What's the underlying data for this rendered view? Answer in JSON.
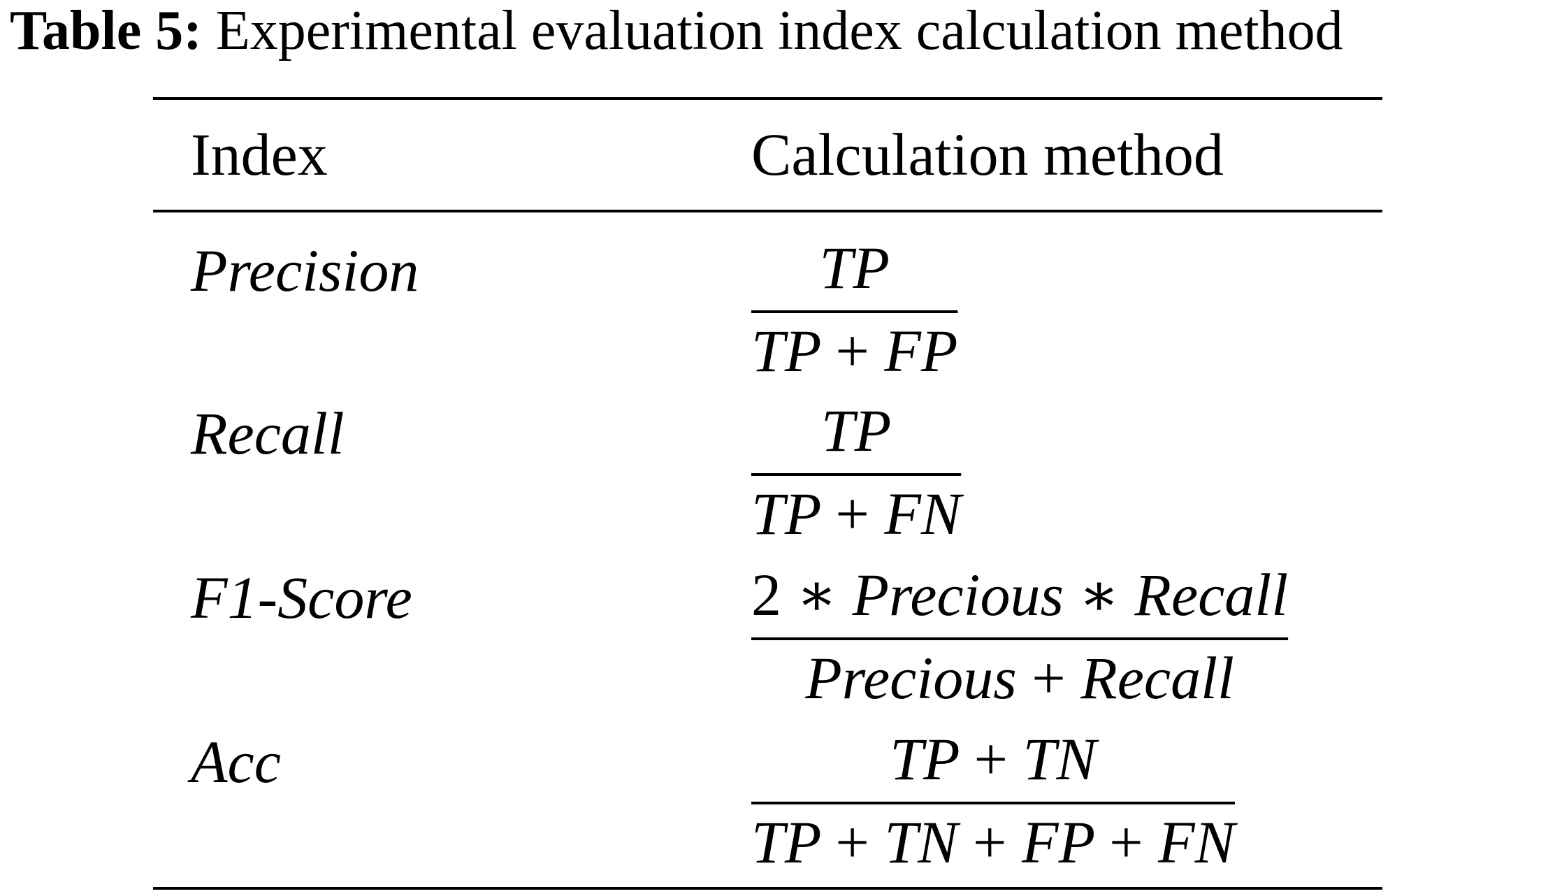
{
  "caption": {
    "label": "Table 5:",
    "text": "Experimental evaluation index calculation method"
  },
  "table": {
    "header": [
      "Index",
      "Calculation method"
    ],
    "rows": [
      {
        "index": "Precision",
        "numerator": "TP",
        "denominator": "TP + FP"
      },
      {
        "index": "Recall",
        "numerator": "TP",
        "denominator": "TP + FN"
      },
      {
        "index": "F1-Score",
        "numerator": "2 ∗ Precious ∗ Recall",
        "denominator": "Precious + Recall"
      },
      {
        "index": "Acc",
        "numerator": "TP + TN",
        "denominator": "TP + TN + FP + FN"
      }
    ]
  }
}
